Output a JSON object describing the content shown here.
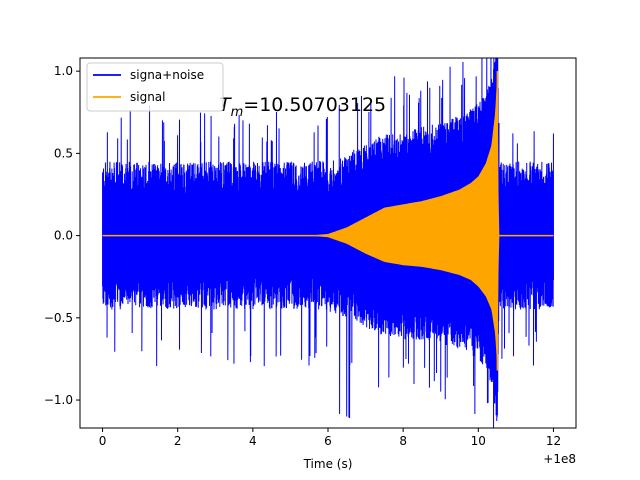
{
  "chart_data": {
    "type": "line",
    "xlabel": "Time (s)",
    "ylabel": "",
    "xlim": [
      -0.6,
      12.6
    ],
    "ylim": [
      -1.17,
      1.08
    ],
    "x_offset_label": "+1e8",
    "x_ticks": [
      0,
      2,
      4,
      6,
      8,
      10,
      12
    ],
    "x_tick_labels": [
      "0",
      "2",
      "4",
      "6",
      "8",
      "10",
      "12"
    ],
    "y_ticks": [
      -1.0,
      -0.5,
      0.0,
      0.5,
      1.0
    ],
    "y_tick_labels": [
      "−1.0",
      "−0.5",
      "0.0",
      "0.5",
      "1.0"
    ],
    "grid": false,
    "legend_position": "top-left",
    "annotation": {
      "prefix": "T",
      "subscript": "m",
      "value": "=10.50703125",
      "x": 3.1,
      "y": 0.8
    },
    "series": [
      {
        "name": "signa+noise",
        "color": "#0000ff",
        "noise_amplitude_typical": 0.45,
        "noise_amplitude_peak": 0.8,
        "x_range": [
          0,
          12
        ]
      },
      {
        "name": "signal",
        "color": "#ffa500",
        "envelope": {
          "x": [
            0,
            5.5,
            6.0,
            6.5,
            7.0,
            7.5,
            8.0,
            8.5,
            9.0,
            9.5,
            9.8,
            10.0,
            10.2,
            10.35,
            10.45,
            10.507,
            10.55,
            12
          ],
          "upper": [
            0,
            0,
            0.01,
            0.05,
            0.11,
            0.17,
            0.19,
            0.21,
            0.24,
            0.28,
            0.32,
            0.36,
            0.44,
            0.55,
            0.75,
            1.0,
            0.0,
            0.0
          ],
          "lower": [
            0,
            0,
            -0.01,
            -0.05,
            -0.11,
            -0.16,
            -0.18,
            -0.19,
            -0.21,
            -0.24,
            -0.27,
            -0.31,
            -0.37,
            -0.45,
            -0.6,
            -0.82,
            0.0,
            0.0
          ]
        },
        "merger_time": 10.50703125,
        "x_range": [
          0,
          12
        ]
      }
    ]
  }
}
